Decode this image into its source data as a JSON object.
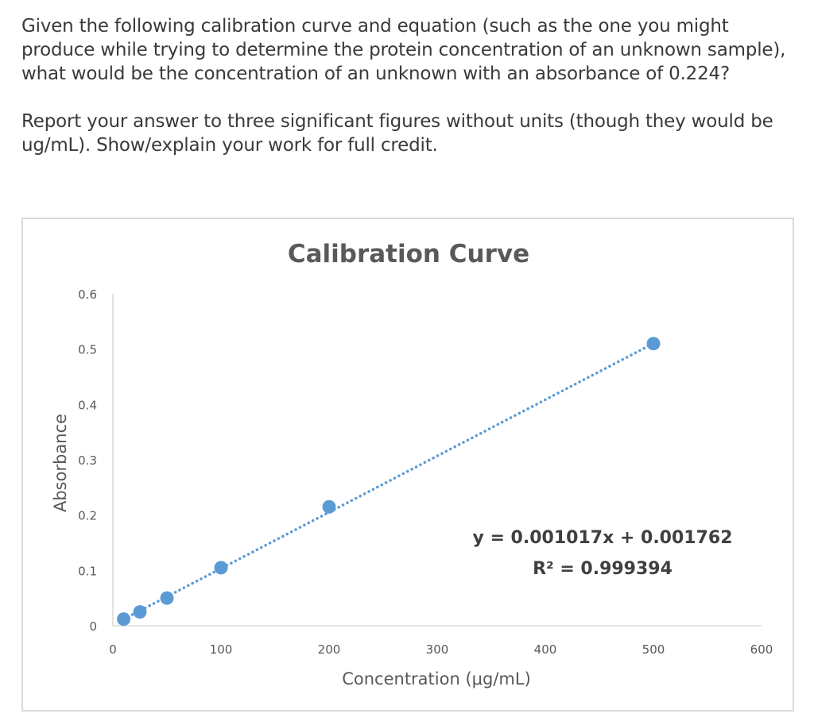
{
  "question": {
    "text": "Given the following calibration curve and equation (such as the one you might produce while trying to determine the protein concentration of an unknown sample), what would be the concentration of an unknown with an absorbance of 0.224?",
    "instructions": "Report your answer to three significant figures without units (though they would be ug/mL). Show/explain your work for full credit."
  },
  "chart_data": {
    "type": "scatter",
    "title": "Calibration Curve",
    "xlabel": "Concentration (μg/mL)",
    "ylabel": "Absorbance",
    "xlim": [
      0,
      600
    ],
    "ylim": [
      0,
      0.6
    ],
    "x_ticks": [
      0,
      100,
      200,
      300,
      400,
      500,
      600
    ],
    "y_ticks": [
      0,
      0.1,
      0.2,
      0.3,
      0.4,
      0.5,
      0.6
    ],
    "x_tick_labels": [
      "0",
      "100",
      "200",
      "300",
      "400",
      "500",
      "600"
    ],
    "y_tick_labels": [
      "0",
      "0.1",
      "0.2",
      "0.3",
      "0.4",
      "0.5",
      "0.6"
    ],
    "grid": false,
    "series": [
      {
        "x": [
          10,
          25,
          50,
          100,
          200,
          500
        ],
        "y": [
          0.012,
          0.025,
          0.05,
          0.105,
          0.215,
          0.51
        ],
        "color": "#5b9bd5"
      }
    ],
    "trendline": {
      "type": "linear",
      "slope": 0.001017,
      "intercept": 0.001762,
      "style": "dotted",
      "color": "#5b9bd5",
      "x_range": [
        10,
        500
      ]
    },
    "annotations": [
      "y = 0.001017x + 0.001762",
      "R² = 0.999394"
    ]
  }
}
